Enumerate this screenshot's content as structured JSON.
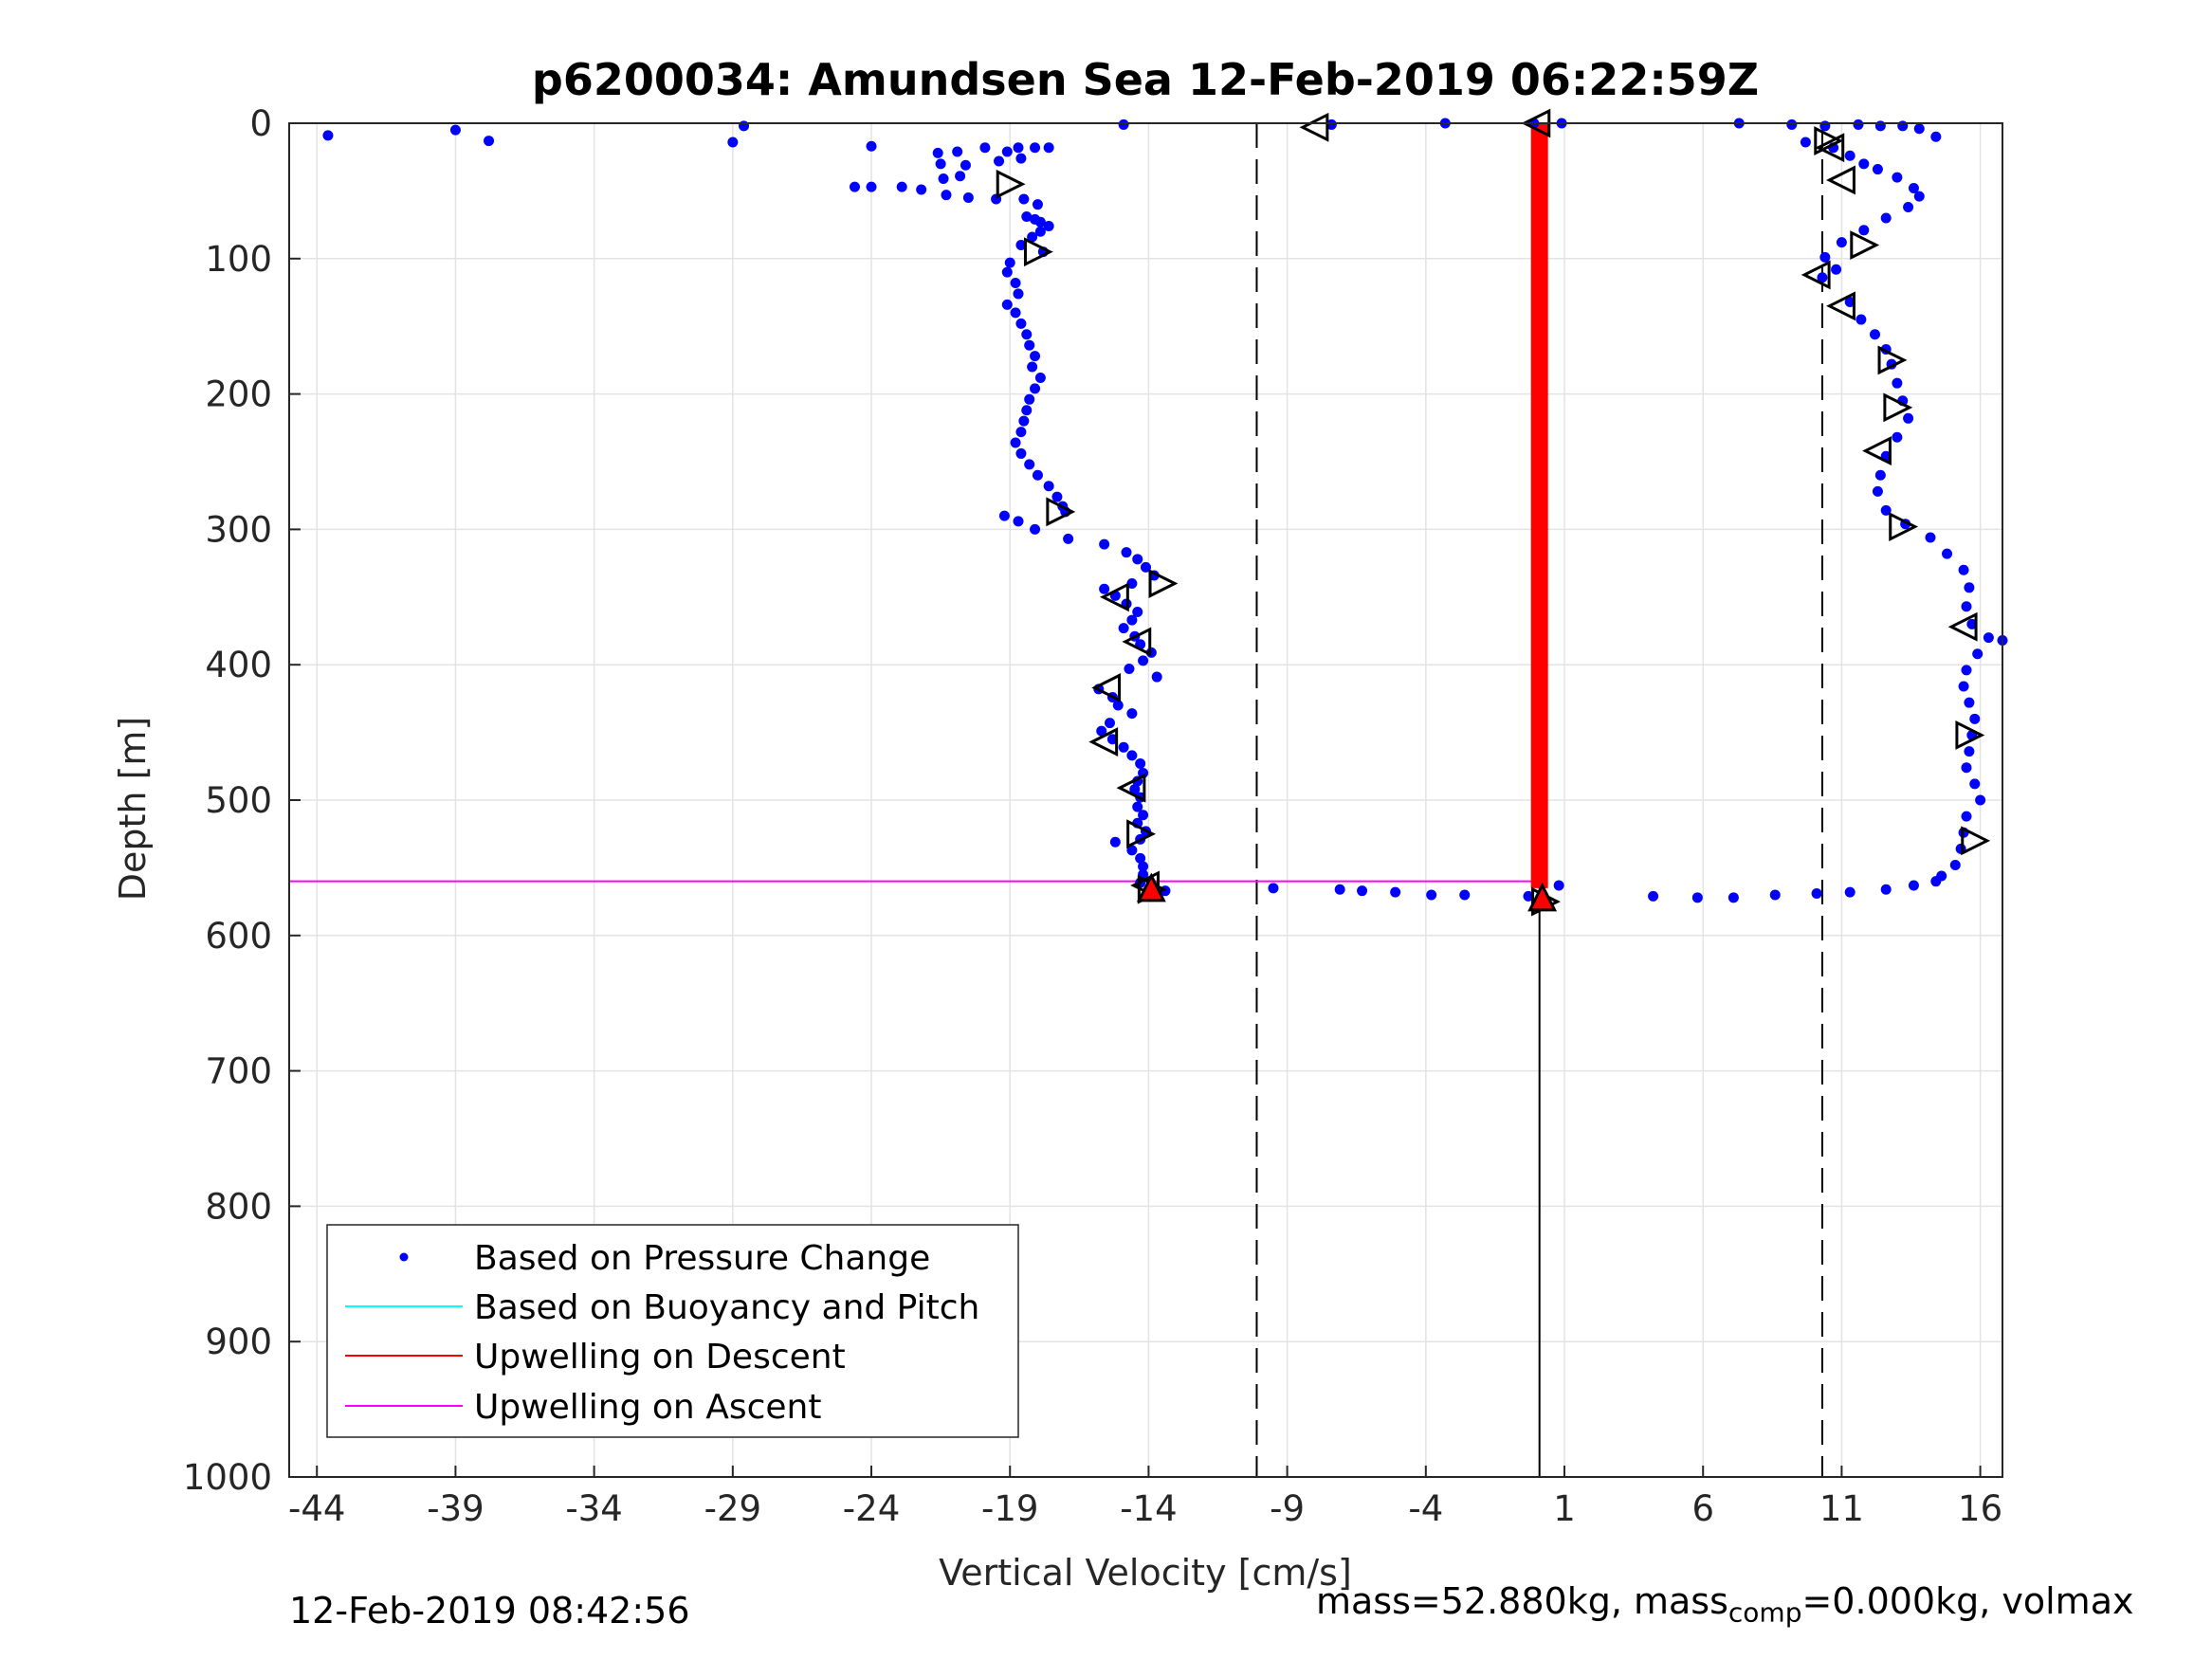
{
  "chart_data": {
    "type": "scatter",
    "title": "p6200034: Amundsen Sea 12-Feb-2019 06:22:59Z",
    "xlabel": "Vertical Velocity [cm/s]",
    "ylabel": "Depth [m]",
    "xlim": [
      -45,
      16.8
    ],
    "ylim": [
      0,
      1000
    ],
    "y_reversed": true,
    "grid": true,
    "legend_position": "bottom-left",
    "xticks": [
      -44,
      -39,
      -34,
      -29,
      -24,
      -19,
      -14,
      -9,
      -4,
      1,
      6,
      11,
      16
    ],
    "yticks": [
      0,
      100,
      200,
      300,
      400,
      500,
      600,
      700,
      800,
      900,
      1000
    ],
    "colors": {
      "pressure": "#0000ff",
      "buoyancy": "#00ffff",
      "descent": "#ff0000",
      "ascent": "#ff00ff",
      "guide": "#000000"
    },
    "legend": [
      {
        "label": "Based on Pressure Change",
        "style": "dot",
        "color": "#0000ff"
      },
      {
        "label": "Based on Buoyancy and Pitch",
        "style": "line",
        "color": "#00ffff"
      },
      {
        "label": "Upwelling on Descent",
        "style": "line",
        "color": "#ff0000"
      },
      {
        "label": "Upwelling on Ascent",
        "style": "line",
        "color": "#ff00ff"
      }
    ],
    "dashed_verticals": [
      -10.1,
      10.3
    ],
    "solid_vertical": {
      "x": 0.1,
      "y_from": 560,
      "y_to": 1000
    },
    "upwelling_on_descent": {
      "x": 0.1,
      "y_from": 0,
      "y_to": 565
    },
    "upwelling_on_ascent": [
      {
        "x_from": -45,
        "x_to": 0.1,
        "y": 0
      },
      {
        "x_from": -45,
        "x_to": 0.1,
        "y": 560
      }
    ],
    "series": [
      {
        "name": "Based on Pressure Change",
        "points": [
          [
            -43.6,
            9
          ],
          [
            -39,
            5
          ],
          [
            -37.8,
            13
          ],
          [
            -29,
            14
          ],
          [
            -28.6,
            2
          ],
          [
            -24,
            17
          ],
          [
            -14.9,
            1
          ],
          [
            -7.4,
            1
          ],
          [
            -3.3,
            0
          ],
          [
            -0.1,
            0
          ],
          [
            0.9,
            0
          ],
          [
            -21.6,
            22
          ],
          [
            -21.5,
            30
          ],
          [
            -20.9,
            21
          ],
          [
            -19.9,
            18
          ],
          [
            -19.1,
            21
          ],
          [
            -18.7,
            18
          ],
          [
            -18.1,
            18
          ],
          [
            -17.6,
            18
          ],
          [
            -20.6,
            31
          ],
          [
            -19.4,
            28
          ],
          [
            -18.6,
            26
          ],
          [
            -24.6,
            47
          ],
          [
            -24,
            47
          ],
          [
            -22.9,
            47
          ],
          [
            -22.2,
            49
          ],
          [
            -21.3,
            53
          ],
          [
            -20.5,
            55
          ],
          [
            -19.5,
            56
          ],
          [
            -18.5,
            56
          ],
          [
            -18,
            60
          ],
          [
            -20.8,
            39
          ],
          [
            -21.4,
            41
          ],
          [
            -18.4,
            69
          ],
          [
            -18.1,
            71
          ],
          [
            -17.9,
            73
          ],
          [
            -17.6,
            76
          ],
          [
            -17.9,
            80
          ],
          [
            -18.2,
            84
          ],
          [
            -18.6,
            90
          ],
          [
            -17.8,
            95
          ],
          [
            -19,
            103
          ],
          [
            -19.1,
            110
          ],
          [
            -18.8,
            118
          ],
          [
            -18.7,
            126
          ],
          [
            -19.1,
            134
          ],
          [
            -18.8,
            140
          ],
          [
            -18.6,
            148
          ],
          [
            -18.4,
            156
          ],
          [
            -18.3,
            164
          ],
          [
            -18.1,
            172
          ],
          [
            -18.2,
            180
          ],
          [
            -17.9,
            188
          ],
          [
            -18.1,
            196
          ],
          [
            -18.3,
            204
          ],
          [
            -18.4,
            212
          ],
          [
            -18.5,
            220
          ],
          [
            -18.6,
            228
          ],
          [
            -18.8,
            236
          ],
          [
            -18.6,
            244
          ],
          [
            -18.3,
            252
          ],
          [
            -18,
            260
          ],
          [
            -17.6,
            268
          ],
          [
            -17.3,
            276
          ],
          [
            -17.1,
            283
          ],
          [
            -17,
            287
          ],
          [
            -19.2,
            290
          ],
          [
            -18.7,
            294
          ],
          [
            -18.1,
            300
          ],
          [
            -16.9,
            307
          ],
          [
            -15.6,
            311
          ],
          [
            -14.8,
            317
          ],
          [
            -14.4,
            322
          ],
          [
            -14.1,
            328
          ],
          [
            -13.8,
            334
          ],
          [
            -14.6,
            340
          ],
          [
            -15.6,
            344
          ],
          [
            -15.2,
            349
          ],
          [
            -14.8,
            355
          ],
          [
            -14.4,
            361
          ],
          [
            -14.6,
            367
          ],
          [
            -14.9,
            373
          ],
          [
            -14.5,
            379
          ],
          [
            -14.3,
            385
          ],
          [
            -13.9,
            391
          ],
          [
            -14.2,
            397
          ],
          [
            -14.7,
            403
          ],
          [
            -13.7,
            409
          ],
          [
            -15.8,
            418
          ],
          [
            -15.3,
            424
          ],
          [
            -15.1,
            430
          ],
          [
            -14.6,
            436
          ],
          [
            -15.4,
            443
          ],
          [
            -15.7,
            449
          ],
          [
            -15.3,
            455
          ],
          [
            -14.9,
            461
          ],
          [
            -14.6,
            467
          ],
          [
            -14.3,
            473
          ],
          [
            -14.2,
            480
          ],
          [
            -14.4,
            486
          ],
          [
            -14.5,
            492
          ],
          [
            -14.3,
            498
          ],
          [
            -14.4,
            505
          ],
          [
            -14.2,
            511
          ],
          [
            -14.4,
            517
          ],
          [
            -14.1,
            523
          ],
          [
            -14.3,
            529
          ],
          [
            -15.2,
            531
          ],
          [
            -14.6,
            537
          ],
          [
            -14.3,
            543
          ],
          [
            -14.2,
            549
          ],
          [
            -14.2,
            555
          ],
          [
            -14.3,
            561
          ],
          [
            -14,
            566
          ],
          [
            -13.4,
            567
          ],
          [
            -9.5,
            565
          ],
          [
            -7.1,
            566
          ],
          [
            -6.3,
            567
          ],
          [
            -5.1,
            568
          ],
          [
            -3.8,
            570
          ],
          [
            -2.6,
            570
          ],
          [
            0.8,
            563
          ],
          [
            -0.3,
            571
          ],
          [
            0.1,
            574
          ],
          [
            4.2,
            571
          ],
          [
            5.8,
            572
          ],
          [
            7.1,
            572
          ],
          [
            8.6,
            570
          ],
          [
            10.1,
            569
          ],
          [
            11.3,
            568
          ],
          [
            12.6,
            566
          ],
          [
            13.6,
            563
          ],
          [
            14.4,
            560
          ],
          [
            7.3,
            0
          ],
          [
            9.2,
            1
          ],
          [
            10.4,
            2
          ],
          [
            11.6,
            1
          ],
          [
            12.4,
            2
          ],
          [
            13.2,
            2
          ],
          [
            13.8,
            4
          ],
          [
            14.4,
            10
          ],
          [
            9.7,
            14
          ],
          [
            10.7,
            18
          ],
          [
            11.3,
            24
          ],
          [
            11.8,
            30
          ],
          [
            12.3,
            34
          ],
          [
            13,
            40
          ],
          [
            13.6,
            48
          ],
          [
            13.8,
            54
          ],
          [
            13.4,
            62
          ],
          [
            12.6,
            70
          ],
          [
            11.8,
            79
          ],
          [
            11,
            88
          ],
          [
            10.4,
            99
          ],
          [
            10.8,
            108
          ],
          [
            10.3,
            114
          ],
          [
            11.3,
            132
          ],
          [
            11.7,
            145
          ],
          [
            12.2,
            156
          ],
          [
            12.6,
            167
          ],
          [
            12.8,
            178
          ],
          [
            13,
            192
          ],
          [
            13.2,
            205
          ],
          [
            13.4,
            218
          ],
          [
            13,
            232
          ],
          [
            12.6,
            246
          ],
          [
            12.4,
            260
          ],
          [
            12.3,
            272
          ],
          [
            12.6,
            286
          ],
          [
            13.3,
            296
          ],
          [
            14.2,
            306
          ],
          [
            14.8,
            318
          ],
          [
            15.4,
            330
          ],
          [
            15.6,
            343
          ],
          [
            15.5,
            357
          ],
          [
            15.7,
            370
          ],
          [
            16.3,
            380
          ],
          [
            16.8,
            382
          ],
          [
            15.9,
            392
          ],
          [
            15.5,
            404
          ],
          [
            15.4,
            416
          ],
          [
            15.6,
            428
          ],
          [
            15.8,
            440
          ],
          [
            15.7,
            452
          ],
          [
            15.6,
            464
          ],
          [
            15.5,
            476
          ],
          [
            15.8,
            488
          ],
          [
            16,
            500
          ],
          [
            15.5,
            512
          ],
          [
            15.4,
            524
          ],
          [
            15.3,
            536
          ],
          [
            15.1,
            548
          ],
          [
            14.6,
            556
          ]
        ]
      }
    ],
    "descent_markers": [
      [
        -19,
        45
      ],
      [
        -18,
        95
      ],
      [
        -17.2,
        287
      ],
      [
        -13.5,
        340
      ],
      [
        -14.3,
        525
      ],
      [
        -13.9,
        566
      ],
      [
        0.3,
        575
      ],
      [
        10.5,
        13
      ],
      [
        11.8,
        90
      ],
      [
        12.8,
        175
      ],
      [
        13,
        210
      ],
      [
        13.2,
        298
      ],
      [
        15.6,
        452
      ],
      [
        15.8,
        530
      ]
    ],
    "ascent_markers": [
      [
        -8,
        3
      ],
      [
        0,
        0
      ],
      [
        10.6,
        18
      ],
      [
        11,
        42
      ],
      [
        10.1,
        112
      ],
      [
        11,
        135
      ],
      [
        12.3,
        242
      ],
      [
        15.4,
        372
      ],
      [
        -15.2,
        350
      ],
      [
        -14.4,
        383
      ],
      [
        -15.5,
        417
      ],
      [
        -15.6,
        457
      ],
      [
        -14.6,
        491
      ],
      [
        -14.1,
        563
      ]
    ],
    "red_markers": [
      [
        -13.9,
        565
      ],
      [
        0.2,
        572
      ]
    ]
  },
  "footer": {
    "timestamp": "12-Feb-2019 08:42:56",
    "mass_text_a": "mass=52.880kg, mass",
    "mass_sub": "comp",
    "mass_text_b": "=0.000kg, volmax"
  }
}
